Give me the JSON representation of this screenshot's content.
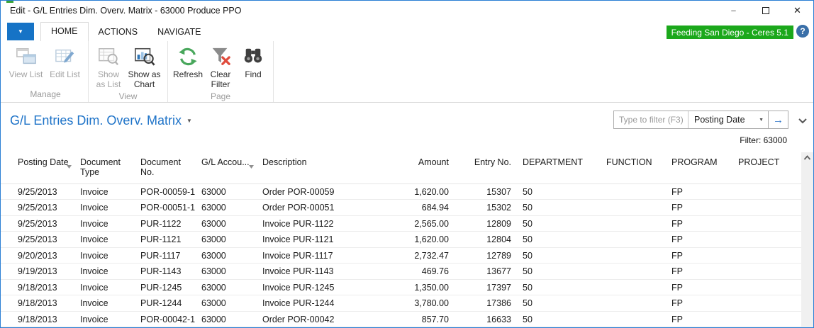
{
  "window": {
    "title": "Edit - G/L Entries Dim. Overv. Matrix - 63000 Produce PPO",
    "badge": "Feeding San Diego - Ceres 5.1",
    "help_glyph": "?",
    "controls": {
      "minimize": "–",
      "close": "✕"
    }
  },
  "menubar": {
    "app_menu_glyph": "▼",
    "tabs": [
      {
        "label": "HOME",
        "active": true
      },
      {
        "label": "ACTIONS",
        "active": false
      },
      {
        "label": "NAVIGATE",
        "active": false
      }
    ]
  },
  "ribbon": {
    "groups": [
      {
        "label": "Manage",
        "buttons": [
          {
            "label": "View List",
            "disabled": true,
            "icon": "view-list-icon"
          },
          {
            "label": "Edit List",
            "disabled": true,
            "icon": "edit-list-icon"
          }
        ]
      },
      {
        "label": "View",
        "buttons": [
          {
            "label": "Show as List",
            "disabled": true,
            "icon": "show-as-list-icon"
          },
          {
            "label": "Show as Chart",
            "disabled": false,
            "icon": "show-as-chart-icon"
          }
        ]
      },
      {
        "label": "Page",
        "buttons": [
          {
            "label": "Refresh",
            "disabled": false,
            "icon": "refresh-icon"
          },
          {
            "label": "Clear Filter",
            "disabled": false,
            "icon": "clear-filter-icon"
          },
          {
            "label": "Find",
            "disabled": false,
            "icon": "find-icon"
          }
        ]
      }
    ]
  },
  "page": {
    "title": "G/L Entries Dim. Overv. Matrix",
    "title_caret": "▼",
    "filter_input_placeholder": "Type to filter (F3)",
    "filter_field": "Posting Date",
    "field_caret": "▼",
    "go_glyph": "→",
    "filter_status": "Filter: 63000"
  },
  "grid": {
    "columns": [
      {
        "key": "posting_date",
        "label": "Posting Date",
        "sortable": true
      },
      {
        "key": "document_type",
        "label": "Document Type"
      },
      {
        "key": "document_no",
        "label": "Document No."
      },
      {
        "key": "gl_account",
        "label": "G/L Accou...",
        "sortable": true
      },
      {
        "key": "description",
        "label": "Description"
      },
      {
        "key": "amount",
        "label": "Amount",
        "align": "right"
      },
      {
        "key": "entry_no",
        "label": "Entry No.",
        "align": "right"
      },
      {
        "key": "department",
        "label": "DEPARTMENT"
      },
      {
        "key": "function",
        "label": "FUNCTION"
      },
      {
        "key": "program",
        "label": "PROGRAM"
      },
      {
        "key": "project",
        "label": "PROJECT"
      }
    ],
    "rows": [
      {
        "posting_date": "9/25/2013",
        "document_type": "Invoice",
        "document_no": "POR-00059-1",
        "gl_account": "63000",
        "description": "Order POR-00059",
        "amount": "1,620.00",
        "entry_no": "15307",
        "department": "50",
        "function": "",
        "program": "FP",
        "project": ""
      },
      {
        "posting_date": "9/25/2013",
        "document_type": "Invoice",
        "document_no": "POR-00051-1",
        "gl_account": "63000",
        "description": "Order POR-00051",
        "amount": "684.94",
        "entry_no": "15302",
        "department": "50",
        "function": "",
        "program": "FP",
        "project": ""
      },
      {
        "posting_date": "9/25/2013",
        "document_type": "Invoice",
        "document_no": "PUR-1122",
        "gl_account": "63000",
        "description": "Invoice PUR-1122",
        "amount": "2,565.00",
        "entry_no": "12809",
        "department": "50",
        "function": "",
        "program": "FP",
        "project": ""
      },
      {
        "posting_date": "9/25/2013",
        "document_type": "Invoice",
        "document_no": "PUR-1121",
        "gl_account": "63000",
        "description": "Invoice PUR-1121",
        "amount": "1,620.00",
        "entry_no": "12804",
        "department": "50",
        "function": "",
        "program": "FP",
        "project": ""
      },
      {
        "posting_date": "9/20/2013",
        "document_type": "Invoice",
        "document_no": "PUR-1117",
        "gl_account": "63000",
        "description": "Invoice PUR-1117",
        "amount": "2,732.47",
        "entry_no": "12789",
        "department": "50",
        "function": "",
        "program": "FP",
        "project": ""
      },
      {
        "posting_date": "9/19/2013",
        "document_type": "Invoice",
        "document_no": "PUR-1143",
        "gl_account": "63000",
        "description": "Invoice PUR-1143",
        "amount": "469.76",
        "entry_no": "13677",
        "department": "50",
        "function": "",
        "program": "FP",
        "project": ""
      },
      {
        "posting_date": "9/18/2013",
        "document_type": "Invoice",
        "document_no": "PUR-1245",
        "gl_account": "63000",
        "description": "Invoice PUR-1245",
        "amount": "1,350.00",
        "entry_no": "17397",
        "department": "50",
        "function": "",
        "program": "FP",
        "project": ""
      },
      {
        "posting_date": "9/18/2013",
        "document_type": "Invoice",
        "document_no": "PUR-1244",
        "gl_account": "63000",
        "description": "Invoice PUR-1244",
        "amount": "3,780.00",
        "entry_no": "17386",
        "department": "50",
        "function": "",
        "program": "FP",
        "project": ""
      },
      {
        "posting_date": "9/18/2013",
        "document_type": "Invoice",
        "document_no": "POR-00042-1",
        "gl_account": "63000",
        "description": "Order POR-00042",
        "amount": "857.70",
        "entry_no": "16633",
        "department": "50",
        "function": "",
        "program": "FP",
        "project": ""
      }
    ]
  }
}
